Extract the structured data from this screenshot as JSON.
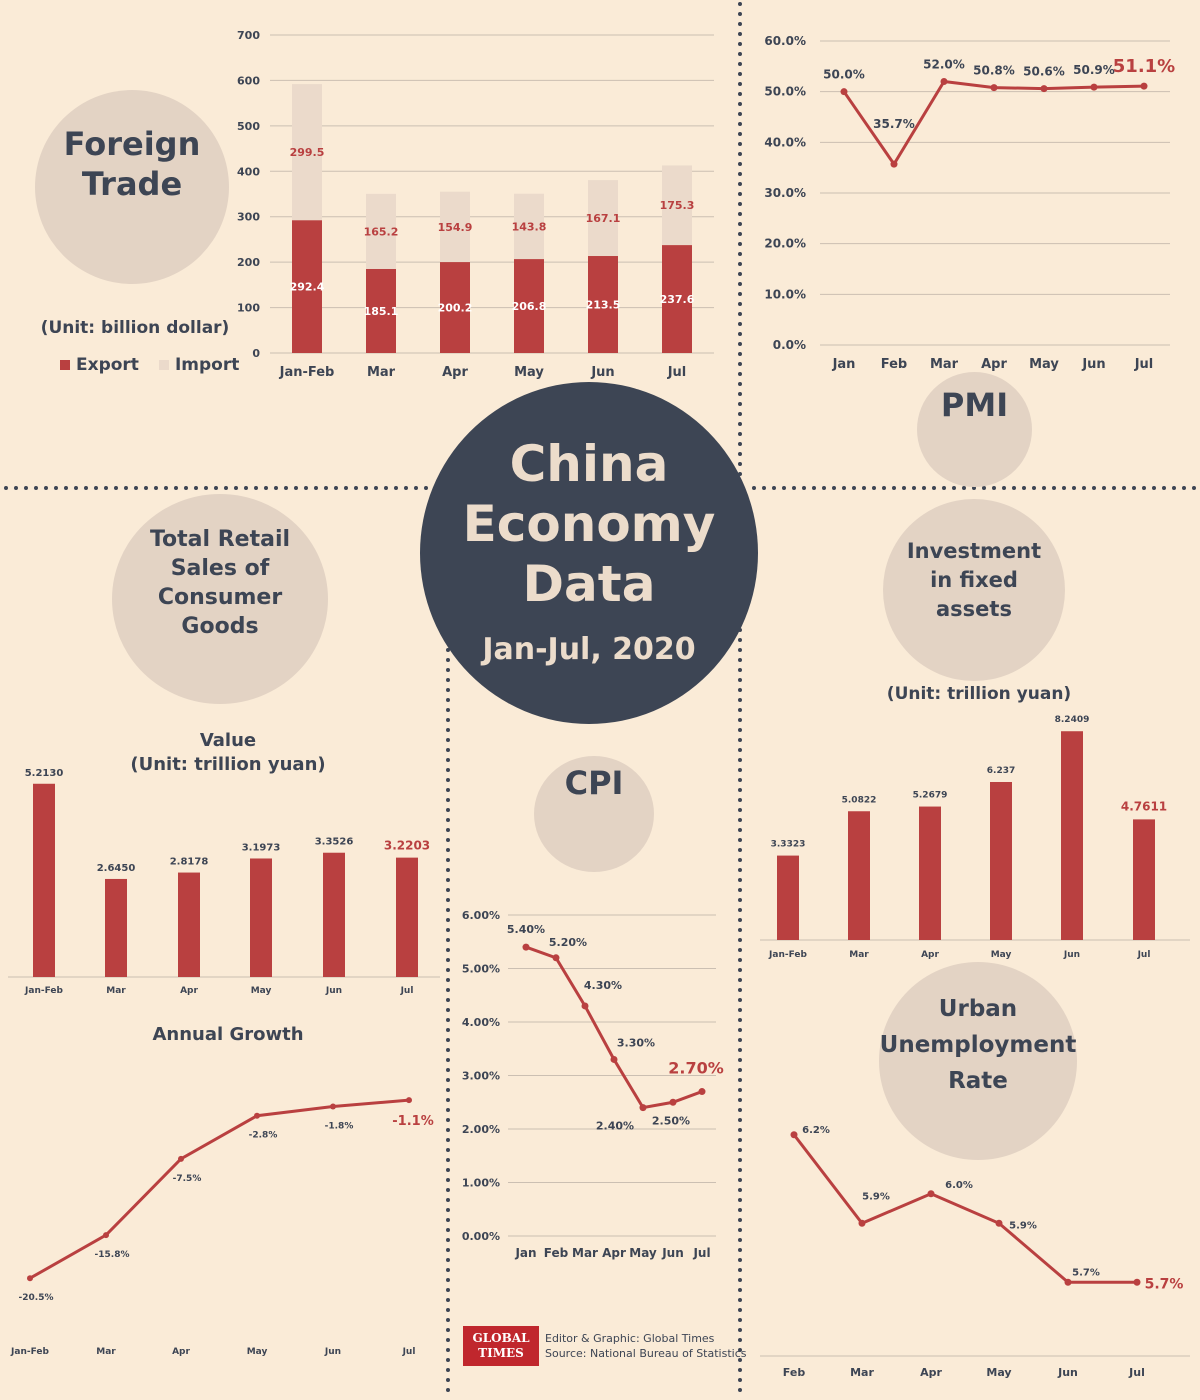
{
  "colors": {
    "background": "#faebd7",
    "accent_red": "#b94040",
    "dark": "#3d4554",
    "bubble": "#e3d3c4",
    "import_fill": "#ebdacb"
  },
  "hub": {
    "title": "China\nEconomy\nData",
    "subtitle": "Jan-Jul, 2020"
  },
  "foreign_trade": {
    "title": "Foreign\nTrade",
    "icon": "handshake-people-icon",
    "unit": "(Unit: billion dollar)",
    "legend_export": "Export",
    "legend_import": "Import"
  },
  "pmi": {
    "title": "PMI",
    "icon": "robot-arm-icon"
  },
  "retail": {
    "title": "Total Retail\nSales of\nConsumer\nGoods",
    "icon": "shopping-basket-icon",
    "value_title": "Value\n(Unit: trillion yuan)",
    "growth_title": "Annual Growth"
  },
  "investment": {
    "title": "Investment\nin fixed\nassets",
    "icon": "dollar-coin-icon",
    "unit": "(Unit: trillion yuan)"
  },
  "cpi": {
    "title": "CPI",
    "icon": "shopping-cart-icon"
  },
  "unemployment": {
    "title": "Urban\nUnemployment\nRate",
    "icon": "job-magnifier-icon"
  },
  "footer": {
    "logo_line1": "GLOBAL",
    "logo_line2": "TIMES",
    "credit": "Editor & Graphic: Global Times",
    "source": "Source: National Bureau of Statistics"
  },
  "chart_data": [
    {
      "id": "foreign_trade",
      "type": "bar",
      "stacked": true,
      "categories": [
        "Jan-Feb",
        "Mar",
        "Apr",
        "May",
        "Jun",
        "Jul"
      ],
      "series": [
        {
          "name": "Export",
          "values": [
            292.4,
            185.1,
            200.2,
            206.8,
            213.5,
            237.6
          ]
        },
        {
          "name": "Import",
          "values": [
            299.5,
            165.2,
            154.9,
            143.8,
            167.1,
            175.3
          ]
        }
      ],
      "yticks": [
        "0",
        "100",
        "200",
        "300",
        "400",
        "500",
        "600",
        "700"
      ],
      "ylim": [
        0,
        700
      ],
      "grid": true
    },
    {
      "id": "pmi",
      "type": "line",
      "categories": [
        "Jan",
        "Feb",
        "Mar",
        "Apr",
        "May",
        "Jun",
        "Jul"
      ],
      "values": [
        50.0,
        35.7,
        52.0,
        50.8,
        50.6,
        50.9,
        51.1
      ],
      "labels": [
        "50.0%",
        "35.7%",
        "52.0%",
        "50.8%",
        "50.6%",
        "50.9%",
        "51.1%"
      ],
      "yticks": [
        "0.0%",
        "10.0%",
        "20.0%",
        "30.0%",
        "40.0%",
        "50.0%",
        "60.0%"
      ],
      "ylim": [
        0,
        60
      ],
      "grid": true
    },
    {
      "id": "retail_value",
      "type": "bar",
      "categories": [
        "Jan-Feb",
        "Mar",
        "Apr",
        "May",
        "Jun",
        "Jul"
      ],
      "values": [
        5.213,
        2.645,
        2.8178,
        3.1973,
        3.3526,
        3.2203
      ],
      "labels": [
        "5.2130",
        "2.6450",
        "2.8178",
        "3.1973",
        "3.3526",
        "3.2203"
      ],
      "ylim": [
        0,
        5.8
      ]
    },
    {
      "id": "retail_growth",
      "type": "line",
      "categories": [
        "Jan-Feb",
        "Mar",
        "Apr",
        "May",
        "Jun",
        "Jul"
      ],
      "values": [
        -20.5,
        -15.8,
        -7.5,
        -2.8,
        -1.8,
        -1.1
      ],
      "labels": [
        "-20.5%",
        "-15.8%",
        "-7.5%",
        "-2.8%",
        "-1.8%",
        "-1.1%"
      ],
      "ylim": [
        -22,
        0
      ]
    },
    {
      "id": "investment",
      "type": "bar",
      "categories": [
        "Jan-Feb",
        "Mar",
        "Apr",
        "May",
        "Jun",
        "Jul"
      ],
      "values": [
        3.3323,
        5.0822,
        5.2679,
        6.237,
        8.2409,
        4.7611
      ],
      "labels": [
        "3.3323",
        "5.0822",
        "5.2679",
        "6.237",
        "8.2409",
        "4.7611"
      ],
      "ylim": [
        0,
        9
      ]
    },
    {
      "id": "cpi",
      "type": "line",
      "categories": [
        "Jan",
        "Feb",
        "Mar",
        "Apr",
        "May",
        "Jun",
        "Jul"
      ],
      "values": [
        5.4,
        5.2,
        4.3,
        3.3,
        2.4,
        2.5,
        2.7
      ],
      "labels": [
        "5.40%",
        "5.20%",
        "4.30%",
        "3.30%",
        "2.40%",
        "2.50%",
        "2.70%"
      ],
      "yticks": [
        "0.00%",
        "1.00%",
        "2.00%",
        "3.00%",
        "4.00%",
        "5.00%",
        "6.00%"
      ],
      "ylim": [
        0,
        6
      ],
      "grid": true
    },
    {
      "id": "unemployment",
      "type": "line",
      "categories": [
        "Feb",
        "Mar",
        "Apr",
        "May",
        "Jun",
        "Jul"
      ],
      "values": [
        6.2,
        5.9,
        6.0,
        5.9,
        5.7,
        5.7
      ],
      "labels": [
        "6.2%",
        "5.9%",
        "6.0%",
        "5.9%",
        "5.7%",
        "5.7%"
      ],
      "ylim": [
        5.45,
        6.25
      ]
    }
  ]
}
